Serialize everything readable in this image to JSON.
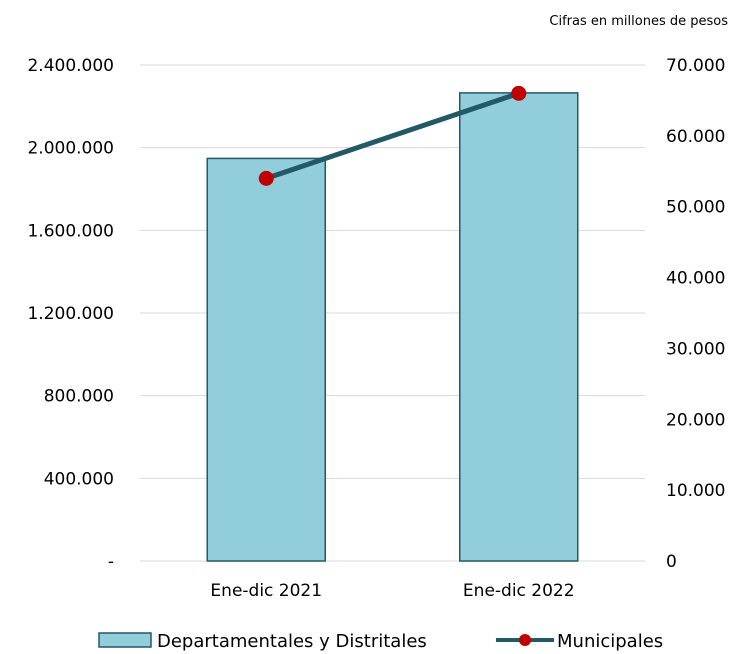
{
  "note": "Cifras en millones de pesos",
  "colors": {
    "bar_fill": "#92cddc",
    "bar_stroke": "#215968",
    "line": "#215968",
    "marker": "#c00000",
    "grid": "#d9d9d9"
  },
  "chart_data": {
    "type": "bar",
    "categories": [
      "Ene-dic 2021",
      "Ene-dic 2022"
    ],
    "series": [
      {
        "name": "Departamentales y Distritales",
        "type": "bar",
        "axis": "left",
        "values": [
          1948000,
          2265000
        ]
      },
      {
        "name": "Municipales",
        "type": "line",
        "axis": "right",
        "values": [
          54000,
          66000
        ]
      }
    ],
    "y_left": {
      "ylim": [
        0,
        2400000
      ],
      "ticks": [
        0,
        400000,
        800000,
        1200000,
        1600000,
        2000000,
        2400000
      ],
      "tick_labels": [
        "-",
        "400.000",
        "800.000",
        "1.200.000",
        "1.600.000",
        "2.000.000",
        "2.400.000"
      ]
    },
    "y_right": {
      "ylim": [
        0,
        70000
      ],
      "ticks": [
        0,
        10000,
        20000,
        30000,
        40000,
        50000,
        60000,
        70000
      ],
      "tick_labels": [
        "0",
        "10.000",
        "20.000",
        "30.000",
        "40.000",
        "50.000",
        "60.000",
        "70.000"
      ]
    },
    "grid": true,
    "legend": "bottom"
  }
}
